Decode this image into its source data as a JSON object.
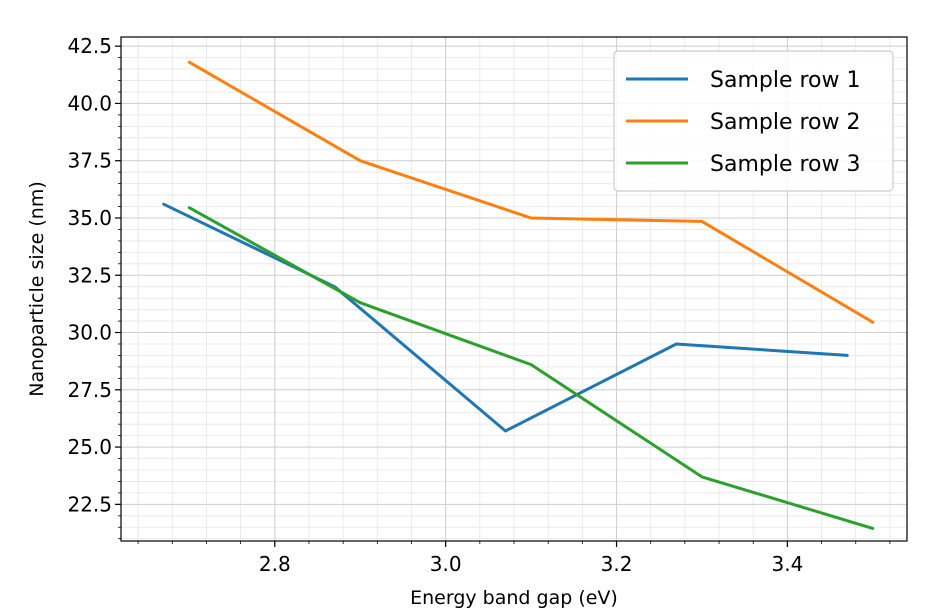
{
  "chart_data": {
    "type": "line",
    "title": "",
    "xlabel": "Energy band gap (eV)",
    "ylabel": "Nanoparticle size (nm)",
    "xlim": [
      2.62,
      3.54
    ],
    "ylim": [
      20.9,
      42.9
    ],
    "x_ticks": [
      2.8,
      3.0,
      3.2,
      3.4
    ],
    "x_tick_labels": [
      "2.8",
      "3.0",
      "3.2",
      "3.4"
    ],
    "y_ticks": [
      22.5,
      25.0,
      27.5,
      30.0,
      32.5,
      35.0,
      37.5,
      40.0,
      42.5
    ],
    "y_tick_labels": [
      "22.5",
      "25.0",
      "27.5",
      "30.0",
      "32.5",
      "35.0",
      "37.5",
      "40.0",
      "42.5"
    ],
    "grid": true,
    "minor_grid": true,
    "legend_position": "top-right",
    "series": [
      {
        "name": "Sample row 1",
        "color": "#1f77b4",
        "x": [
          2.67,
          2.87,
          3.07,
          3.27,
          3.47
        ],
        "y": [
          35.6,
          32.0,
          25.7,
          29.5,
          29.0
        ]
      },
      {
        "name": "Sample row 2",
        "color": "#ff7f0e",
        "x": [
          2.7,
          2.9,
          3.1,
          3.3,
          3.5
        ],
        "y": [
          41.8,
          37.5,
          35.0,
          34.85,
          30.45
        ]
      },
      {
        "name": "Sample row 3",
        "color": "#2ca02c",
        "x": [
          2.7,
          2.9,
          3.1,
          3.3,
          3.5
        ],
        "y": [
          35.45,
          31.3,
          28.6,
          23.7,
          21.45
        ]
      }
    ]
  }
}
